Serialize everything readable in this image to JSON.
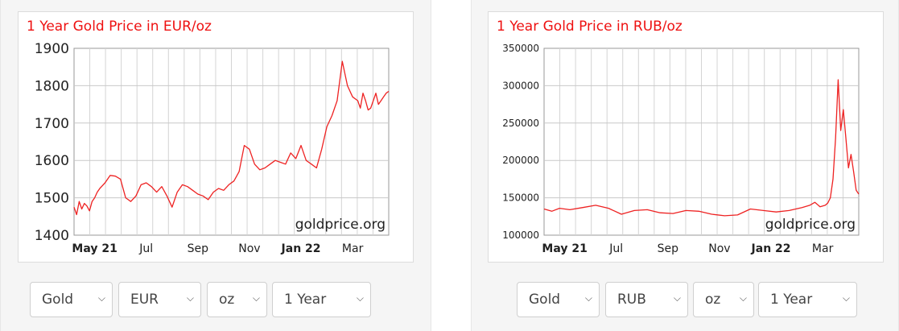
{
  "chart_data": [
    {
      "type": "line",
      "title": "1 Year Gold Price in EUR/oz",
      "watermark": "goldprice.org",
      "x_tick_labels": [
        "May 21",
        "Jul",
        "Sep",
        "Nov",
        "Jan 22",
        "Mar"
      ],
      "bold_x_ticks": [
        "May 21",
        "Jan 22"
      ],
      "y_ticks": [
        1400,
        1500,
        1600,
        1700,
        1800,
        1900
      ],
      "ylim": [
        1400,
        1900
      ],
      "xlim": [
        0,
        12.2
      ],
      "grid": true,
      "line_color": "#ee2222",
      "series": [
        {
          "x": [
            0,
            0.1,
            0.2,
            0.3,
            0.4,
            0.5,
            0.6,
            0.7,
            0.8,
            0.9,
            1.0,
            1.2,
            1.4,
            1.6,
            1.8,
            2.0,
            2.1,
            2.2,
            2.4,
            2.6,
            2.8,
            3.0,
            3.2,
            3.4,
            3.6,
            3.8,
            4.0,
            4.2,
            4.4,
            4.6,
            4.8,
            5.0,
            5.2,
            5.4,
            5.6,
            5.8,
            6.0,
            6.2,
            6.4,
            6.6,
            6.8,
            7.0,
            7.2,
            7.4,
            7.6,
            7.8,
            8.0,
            8.2,
            8.4,
            8.6,
            8.8,
            9.0,
            9.2,
            9.4,
            9.6,
            9.8,
            10.0,
            10.2,
            10.4,
            10.6,
            10.8,
            11.0,
            11.1,
            11.2,
            11.3,
            11.4,
            11.5,
            11.6,
            11.7,
            11.8,
            11.9,
            12.0,
            12.1,
            12.2
          ],
          "y": [
            1475,
            1455,
            1490,
            1470,
            1485,
            1478,
            1465,
            1490,
            1500,
            1515,
            1525,
            1540,
            1560,
            1558,
            1550,
            1500,
            1495,
            1490,
            1505,
            1535,
            1540,
            1530,
            1515,
            1530,
            1505,
            1475,
            1515,
            1535,
            1530,
            1520,
            1510,
            1505,
            1495,
            1515,
            1525,
            1520,
            1535,
            1545,
            1570,
            1640,
            1630,
            1590,
            1575,
            1580,
            1590,
            1600,
            1595,
            1590,
            1620,
            1605,
            1640,
            1600,
            1590,
            1580,
            1630,
            1690,
            1720,
            1760,
            1865,
            1800,
            1770,
            1760,
            1740,
            1780,
            1760,
            1735,
            1740,
            1760,
            1780,
            1750,
            1760,
            1770,
            1780,
            1785
          ]
        }
      ]
    },
    {
      "type": "line",
      "title": "1 Year Gold Price in RUB/oz",
      "watermark": "goldprice.org",
      "x_tick_labels": [
        "May 21",
        "Jul",
        "Sep",
        "Nov",
        "Jan 22",
        "Mar"
      ],
      "bold_x_ticks": [
        "May 21",
        "Jan 22"
      ],
      "y_ticks": [
        100000,
        150000,
        200000,
        250000,
        300000,
        350000
      ],
      "ylim": [
        100000,
        350000
      ],
      "xlim": [
        0,
        12.2
      ],
      "grid": true,
      "line_color": "#ee2222",
      "series": [
        {
          "x": [
            0,
            0.3,
            0.6,
            1.0,
            1.5,
            2.0,
            2.5,
            3.0,
            3.5,
            4.0,
            4.5,
            5.0,
            5.5,
            6.0,
            6.5,
            7.0,
            7.5,
            8.0,
            8.5,
            9.0,
            9.5,
            10.0,
            10.3,
            10.5,
            10.7,
            10.9,
            11.0,
            11.1,
            11.2,
            11.3,
            11.4,
            11.5,
            11.6,
            11.7,
            11.8,
            11.9,
            12.0,
            12.1,
            12.2
          ],
          "y": [
            135000,
            132000,
            136000,
            134000,
            137000,
            140000,
            136000,
            128000,
            133000,
            134000,
            130000,
            129000,
            133000,
            132000,
            128000,
            126000,
            127000,
            135000,
            133000,
            131000,
            133000,
            137000,
            140000,
            144000,
            138000,
            140000,
            143000,
            150000,
            175000,
            230000,
            308000,
            240000,
            268000,
            230000,
            190000,
            208000,
            185000,
            160000,
            155000
          ]
        }
      ]
    }
  ],
  "controls": {
    "left": {
      "metal": "Gold",
      "currency": "EUR",
      "unit": "oz",
      "period": "1 Year"
    },
    "right": {
      "metal": "Gold",
      "currency": "RUB",
      "unit": "oz",
      "period": "1 Year"
    }
  },
  "icons": {
    "dropdown": "chevron-down-icon"
  }
}
